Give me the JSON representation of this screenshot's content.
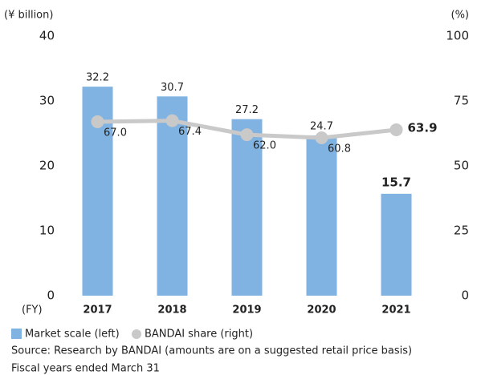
{
  "chart_data": {
    "type": "bar-line",
    "y_label": "(¥ billion)",
    "y2_label": "(%)",
    "x_label": "(FY)",
    "categories": [
      "2017",
      "2018",
      "2019",
      "2020",
      "2021"
    ],
    "series": [
      {
        "name": "Market scale (left)",
        "color": "#80b3e1",
        "values": [
          32.2,
          30.7,
          27.2,
          24.7,
          15.7
        ]
      },
      {
        "name": "BANDAI share (right)",
        "color": "#c9c9c9",
        "axis": "y2",
        "values": [
          67.0,
          67.4,
          62.0,
          60.8,
          63.9
        ],
        "value_labels": [
          "67.0",
          "67.4",
          "62.0",
          "60.8",
          "63.9"
        ]
      }
    ],
    "ylim": [
      0,
      40
    ],
    "yticks": [
      0,
      10,
      20,
      30,
      40
    ],
    "y2lim": [
      0,
      100
    ],
    "y2ticks": [
      0,
      25,
      50,
      75,
      100
    ],
    "notes": [
      "Source: Research by BANDAI (amounts are on a suggested retail price basis)",
      "Fiscal years ended March 31"
    ]
  }
}
